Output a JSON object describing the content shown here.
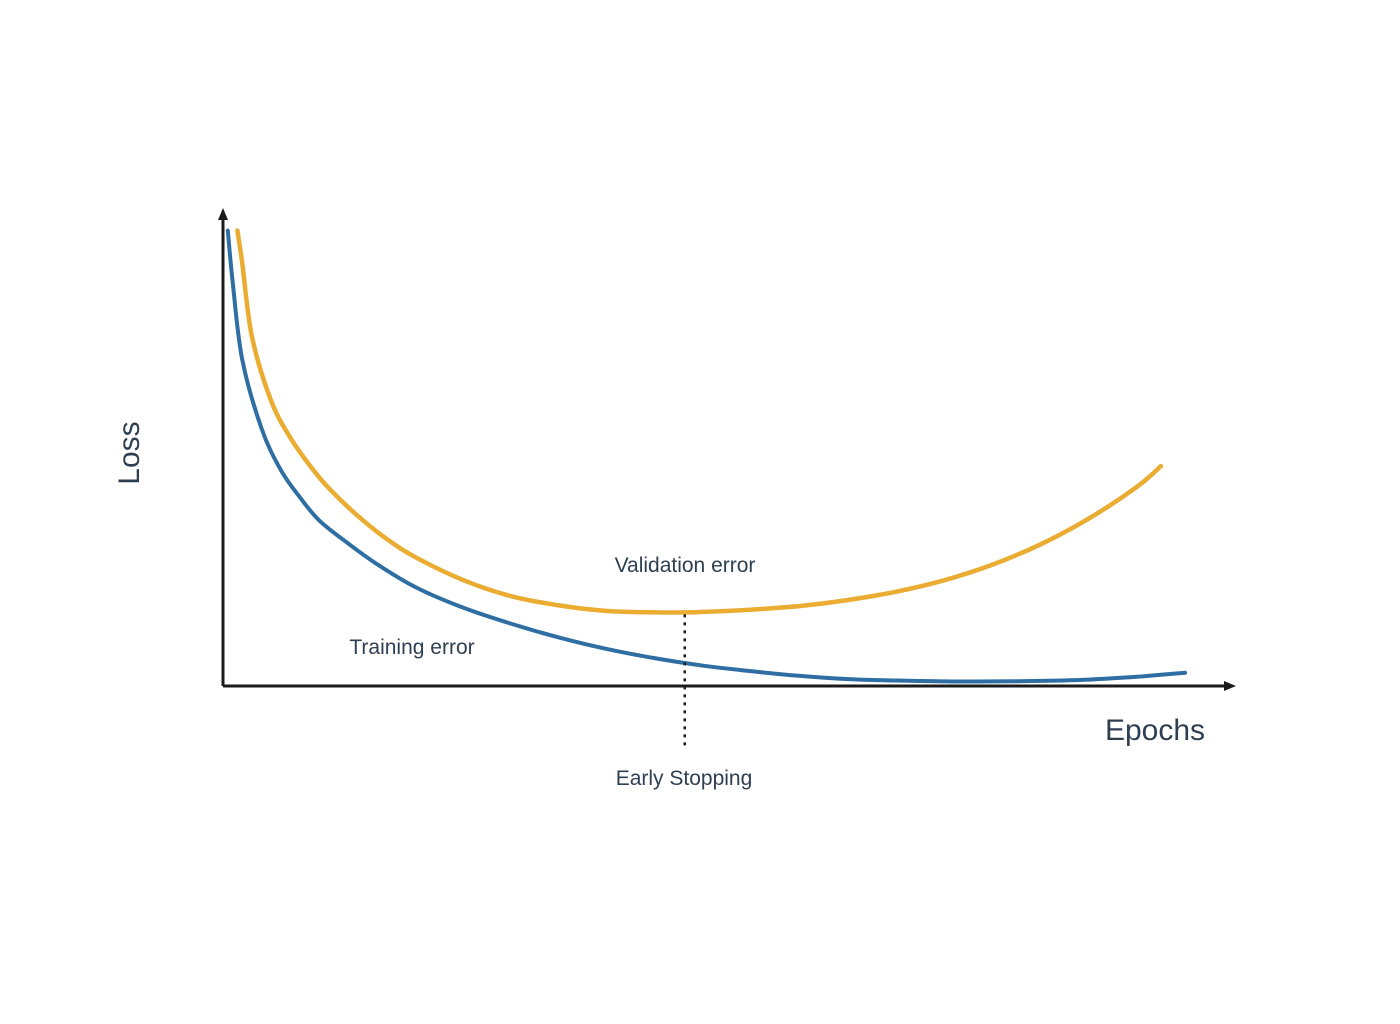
{
  "chart_data": {
    "type": "line",
    "title": "",
    "xlabel": "Epochs",
    "ylabel": "Loss",
    "xlim": [
      0,
      100
    ],
    "ylim": [
      0,
      100
    ],
    "grid": false,
    "legend": "none",
    "colors": {
      "axis": "#1b1b1b",
      "text": "#2f3f52",
      "training": "#2f6ea3",
      "validation": "#eaac31",
      "marker": "#1b1b1b"
    },
    "series": [
      {
        "name": "Training error",
        "x": [
          0.5,
          1,
          2,
          4,
          6,
          8,
          10,
          13,
          16,
          20,
          25,
          30,
          35,
          40,
          45,
          50,
          55,
          60,
          65,
          70,
          75,
          80,
          85,
          90,
          95,
          100
        ],
        "y": [
          99,
          88,
          71,
          56,
          47,
          41,
          36,
          31,
          26.5,
          21.5,
          17,
          13.5,
          10.5,
          8,
          6,
          4.4,
          3.2,
          2.2,
          1.5,
          1.2,
          1.0,
          1.0,
          1.1,
          1.4,
          2.0,
          2.9
        ]
      },
      {
        "name": "Validation error",
        "x": [
          1.5,
          2,
          3,
          5,
          7,
          9,
          11,
          14,
          17,
          20,
          25,
          30,
          35,
          40,
          45,
          48,
          50,
          55,
          60,
          65,
          70,
          75,
          80,
          85,
          90,
          95,
          97.5
        ],
        "y": [
          99,
          92,
          76,
          62,
          54,
          48,
          43,
          37,
          32,
          28,
          23,
          19.5,
          17.5,
          16.3,
          16,
          16,
          16.1,
          16.6,
          17.4,
          18.7,
          20.5,
          23,
          26.4,
          30.8,
          36.4,
          43.3,
          47.8
        ]
      }
    ],
    "annotations": {
      "training_label": "Training error",
      "validation_label": "Validation error",
      "early_stopping": {
        "label": "Early Stopping",
        "x": 48
      }
    }
  }
}
